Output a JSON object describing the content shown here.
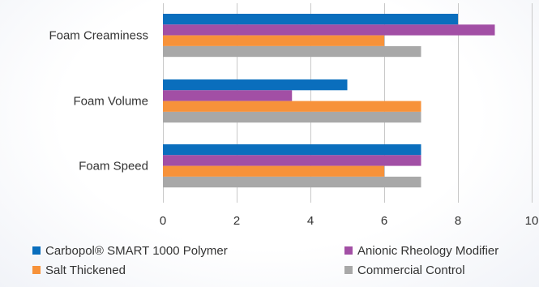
{
  "chart_data": {
    "type": "bar",
    "orientation": "horizontal",
    "categories": [
      "Foam Creaminess",
      "Foam Volume",
      "Foam Speed"
    ],
    "series": [
      {
        "name": "Carbopol® SMART 1000 Polymer",
        "color": "#0a6ebd",
        "values": [
          8,
          5,
          7
        ]
      },
      {
        "name": "Anionic Rheology Modifier",
        "color": "#a24fa5",
        "values": [
          9,
          3.5,
          7
        ]
      },
      {
        "name": "Salt Thickened",
        "color": "#f7923a",
        "values": [
          6,
          7,
          6
        ]
      },
      {
        "name": "Commercial Control",
        "color": "#a8a8a8",
        "values": [
          7,
          7,
          7
        ]
      }
    ],
    "xlim": [
      0,
      10
    ],
    "xticks": [
      "0",
      "2",
      "4",
      "6",
      "8",
      "10"
    ],
    "grid": true,
    "legend_position": "bottom"
  }
}
